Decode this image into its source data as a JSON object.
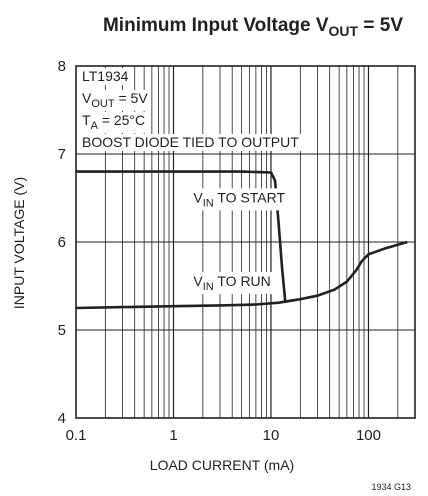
{
  "chart_data": {
    "type": "line",
    "title": {
      "main": "Minimum Input Voltage V",
      "sub": "OUT",
      "tail": " = 5V"
    },
    "xlabel": "LOAD CURRENT (mA)",
    "ylabel": "INPUT VOLTAGE (V)",
    "x_scale": "log",
    "xlim": [
      0.1,
      300
    ],
    "ylim": [
      4,
      8
    ],
    "x_ticks": [
      {
        "value": 0.1,
        "label": "0.1"
      },
      {
        "value": 1,
        "label": "1"
      },
      {
        "value": 10,
        "label": "10"
      },
      {
        "value": 100,
        "label": "100"
      }
    ],
    "y_ticks": [
      {
        "value": 4,
        "label": "4"
      },
      {
        "value": 5,
        "label": "5"
      },
      {
        "value": 6,
        "label": "6"
      },
      {
        "value": 7,
        "label": "7"
      },
      {
        "value": 8,
        "label": "8"
      }
    ],
    "grid": true,
    "conditions": [
      {
        "text": "LT1934"
      },
      {
        "main": "V",
        "sub": "OUT",
        "tail": " = 5V"
      },
      {
        "main": "T",
        "sub": "A",
        "tail": " = 25°C"
      },
      {
        "text": "BOOST DIODE TIED TO OUTPUT"
      }
    ],
    "series": [
      {
        "label": {
          "main": "V",
          "sub": "IN",
          "tail": " TO START"
        },
        "points": [
          {
            "x": 0.1,
            "y": 6.8
          },
          {
            "x": 1,
            "y": 6.8
          },
          {
            "x": 5,
            "y": 6.8
          },
          {
            "x": 10,
            "y": 6.79
          },
          {
            "x": 11,
            "y": 6.7
          },
          {
            "x": 12,
            "y": 6.2
          },
          {
            "x": 13,
            "y": 5.7
          },
          {
            "x": 14,
            "y": 5.33
          }
        ]
      },
      {
        "label": {
          "main": "V",
          "sub": "IN",
          "tail": " TO RUN"
        },
        "points": [
          {
            "x": 0.1,
            "y": 5.25
          },
          {
            "x": 0.3,
            "y": 5.26
          },
          {
            "x": 1,
            "y": 5.27
          },
          {
            "x": 3,
            "y": 5.28
          },
          {
            "x": 7,
            "y": 5.29
          },
          {
            "x": 12,
            "y": 5.31
          },
          {
            "x": 20,
            "y": 5.35
          },
          {
            "x": 30,
            "y": 5.39
          },
          {
            "x": 45,
            "y": 5.46
          },
          {
            "x": 60,
            "y": 5.55
          },
          {
            "x": 75,
            "y": 5.68
          },
          {
            "x": 85,
            "y": 5.78
          },
          {
            "x": 100,
            "y": 5.86
          },
          {
            "x": 150,
            "y": 5.93
          },
          {
            "x": 250,
            "y": 6.0
          }
        ]
      }
    ]
  },
  "figure_code": "1934 G13",
  "colors": {
    "ink": "#231f20",
    "grid": "#231f20"
  }
}
